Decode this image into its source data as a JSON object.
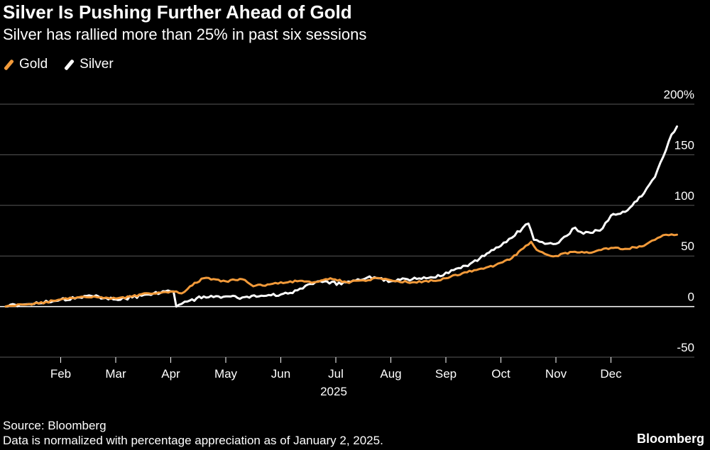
{
  "chart_data": {
    "type": "line",
    "title": "Silver Is Pushing Further Ahead of Gold",
    "subtitle": "Silver has rallied more than 25% in past six sessions",
    "xlabel": "2025",
    "ylabel": "",
    "ylim": [
      -50,
      200
    ],
    "xlim": [
      0,
      12
    ],
    "grid": true,
    "legend_position": "top-left",
    "y_ticks": [
      {
        "value": 200,
        "label": "200%"
      },
      {
        "value": 150,
        "label": "150"
      },
      {
        "value": 100,
        "label": "100"
      },
      {
        "value": 50,
        "label": "50"
      },
      {
        "value": 0,
        "label": "0"
      },
      {
        "value": -50,
        "label": "-50"
      }
    ],
    "x_ticks": [
      {
        "value": 1,
        "label": "Feb"
      },
      {
        "value": 2,
        "label": "Mar"
      },
      {
        "value": 3,
        "label": "Apr"
      },
      {
        "value": 4,
        "label": "May"
      },
      {
        "value": 5,
        "label": "Jun"
      },
      {
        "value": 6,
        "label": "Jul"
      },
      {
        "value": 7,
        "label": "Aug"
      },
      {
        "value": 8,
        "label": "Sep"
      },
      {
        "value": 9,
        "label": "Oct"
      },
      {
        "value": 10,
        "label": "Nov"
      },
      {
        "value": 11,
        "label": "Dec"
      }
    ],
    "x_units": "months since January 2, 2025",
    "series": [
      {
        "name": "Gold",
        "color": "#f29a3a",
        "points": [
          [
            0,
            0
          ],
          [
            0.3,
            2
          ],
          [
            0.6,
            3
          ],
          [
            1.0,
            7
          ],
          [
            1.3,
            9
          ],
          [
            1.6,
            10
          ],
          [
            2.0,
            8
          ],
          [
            2.3,
            10
          ],
          [
            2.6,
            13
          ],
          [
            3.0,
            15
          ],
          [
            3.2,
            13
          ],
          [
            3.35,
            20
          ],
          [
            3.6,
            28
          ],
          [
            4.0,
            25
          ],
          [
            4.3,
            27
          ],
          [
            4.5,
            20
          ],
          [
            4.8,
            22
          ],
          [
            5.0,
            24
          ],
          [
            5.3,
            25
          ],
          [
            5.6,
            24
          ],
          [
            5.9,
            28
          ],
          [
            6.2,
            24
          ],
          [
            6.5,
            26
          ],
          [
            6.8,
            28
          ],
          [
            7.0,
            26
          ],
          [
            7.3,
            24
          ],
          [
            7.6,
            25
          ],
          [
            7.9,
            26
          ],
          [
            8.0,
            28
          ],
          [
            8.3,
            33
          ],
          [
            8.6,
            37
          ],
          [
            8.9,
            41
          ],
          [
            9.2,
            48
          ],
          [
            9.45,
            60
          ],
          [
            9.55,
            64
          ],
          [
            9.65,
            56
          ],
          [
            9.8,
            52
          ],
          [
            10.0,
            50
          ],
          [
            10.3,
            54
          ],
          [
            10.6,
            53
          ],
          [
            11.0,
            58
          ],
          [
            11.3,
            57
          ],
          [
            11.6,
            60
          ],
          [
            11.8,
            66
          ],
          [
            12.0,
            71
          ],
          [
            12.2,
            71
          ]
        ]
      },
      {
        "name": "Silver",
        "color": "#ffffff",
        "points": [
          [
            0,
            0
          ],
          [
            0.3,
            2
          ],
          [
            0.6,
            3
          ],
          [
            1.0,
            7
          ],
          [
            1.3,
            9
          ],
          [
            1.6,
            10
          ],
          [
            2.0,
            7
          ],
          [
            2.3,
            9
          ],
          [
            2.6,
            12
          ],
          [
            2.9,
            15
          ],
          [
            3.05,
            15
          ],
          [
            3.1,
            0
          ],
          [
            3.3,
            5
          ],
          [
            3.6,
            10
          ],
          [
            4.0,
            10
          ],
          [
            4.3,
            9
          ],
          [
            4.6,
            10
          ],
          [
            5.0,
            12
          ],
          [
            5.3,
            16
          ],
          [
            5.5,
            22
          ],
          [
            5.8,
            25
          ],
          [
            6.1,
            22
          ],
          [
            6.4,
            27
          ],
          [
            6.7,
            29
          ],
          [
            7.0,
            25
          ],
          [
            7.3,
            27
          ],
          [
            7.6,
            29
          ],
          [
            7.9,
            30
          ],
          [
            8.1,
            36
          ],
          [
            8.4,
            40
          ],
          [
            8.7,
            50
          ],
          [
            9.0,
            60
          ],
          [
            9.2,
            68
          ],
          [
            9.4,
            78
          ],
          [
            9.5,
            82
          ],
          [
            9.6,
            66
          ],
          [
            9.8,
            62
          ],
          [
            10.0,
            62
          ],
          [
            10.2,
            70
          ],
          [
            10.35,
            78
          ],
          [
            10.5,
            72
          ],
          [
            10.8,
            75
          ],
          [
            11.0,
            90
          ],
          [
            11.3,
            95
          ],
          [
            11.6,
            112
          ],
          [
            11.8,
            128
          ],
          [
            11.95,
            148
          ],
          [
            12.1,
            170
          ],
          [
            12.2,
            178
          ]
        ]
      }
    ]
  },
  "legend": {
    "gold_label": "Gold",
    "silver_label": "Silver"
  },
  "footer": {
    "source": "Source: Bloomberg",
    "note": "Data is normalized with percentage appreciation as of January 2, 2025.",
    "brand": "Bloomberg"
  },
  "colors": {
    "background": "#000000",
    "gridline": "#595959",
    "zero_line": "#ffffff",
    "gold": "#f29a3a",
    "silver": "#ffffff"
  }
}
